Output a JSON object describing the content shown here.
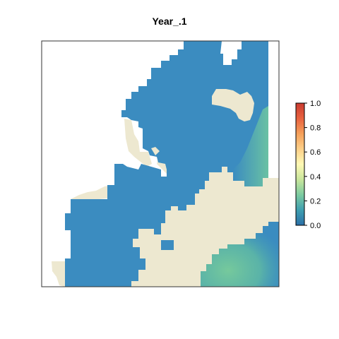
{
  "title": "Year_.1",
  "colors": {
    "water": "#3b8cc0",
    "water_dark": "#3686bd",
    "land": "#ede8d0",
    "frame": "#333333",
    "hotspot": "#6fc6a0"
  },
  "legend": {
    "ticks": [
      "0.0",
      "0.2",
      "0.4",
      "0.6",
      "0.8",
      "1.0"
    ],
    "range": [
      0,
      1
    ],
    "gradient_stops": [
      "#2b6fa8",
      "#3f9fb0",
      "#7ccba0",
      "#c9e69c",
      "#fff9b5",
      "#fdd089",
      "#f5a05a",
      "#e8623f",
      "#c93a30"
    ]
  }
}
